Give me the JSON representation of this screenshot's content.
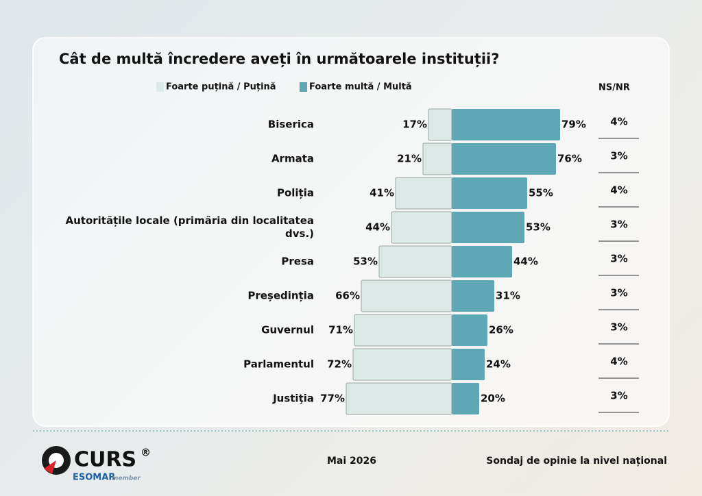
{
  "chart_data": {
    "type": "bar",
    "title": "Cât de multă încredere aveți în următoarele instituții?",
    "categories": [
      "Biserica",
      "Armata",
      "Poliția",
      "Autoritățile locale (primăria din localitatea dvs.)",
      "Presa",
      "Președinția",
      "Guvernul",
      "Parlamentul",
      "Justiţia"
    ],
    "series": [
      {
        "name": "Foarte puțină / Puțină",
        "color": "#dde9e6",
        "side": "left",
        "values": [
          17,
          21,
          41,
          44,
          53,
          66,
          71,
          72,
          77
        ],
        "value_labels": [
          "17%",
          "21%",
          "41%",
          "44%",
          "53%",
          "66%",
          "71%",
          "72%",
          "77%"
        ]
      },
      {
        "name": "Foarte multă / Multă",
        "color": "#5ea8b5",
        "side": "right",
        "values": [
          79,
          76,
          55,
          53,
          44,
          31,
          26,
          24,
          20
        ],
        "value_labels": [
          "79%",
          "76%",
          "55%",
          "53%",
          "44%",
          "31%",
          "26%",
          "24%",
          "20%"
        ]
      }
    ],
    "extra_column": {
      "name": "NS/NR",
      "values": [
        4,
        3,
        4,
        3,
        3,
        3,
        3,
        4,
        3
      ],
      "value_labels": [
        "4%",
        "3%",
        "4%",
        "3%",
        "3%",
        "3%",
        "3%",
        "4%",
        "3%"
      ]
    }
  },
  "footer": {
    "logo": "CURS",
    "registered": "®",
    "esomar": "ESOMAR",
    "member": "member",
    "date": "Mai 2026",
    "note": "Sondaj de opinie la nivel național"
  }
}
